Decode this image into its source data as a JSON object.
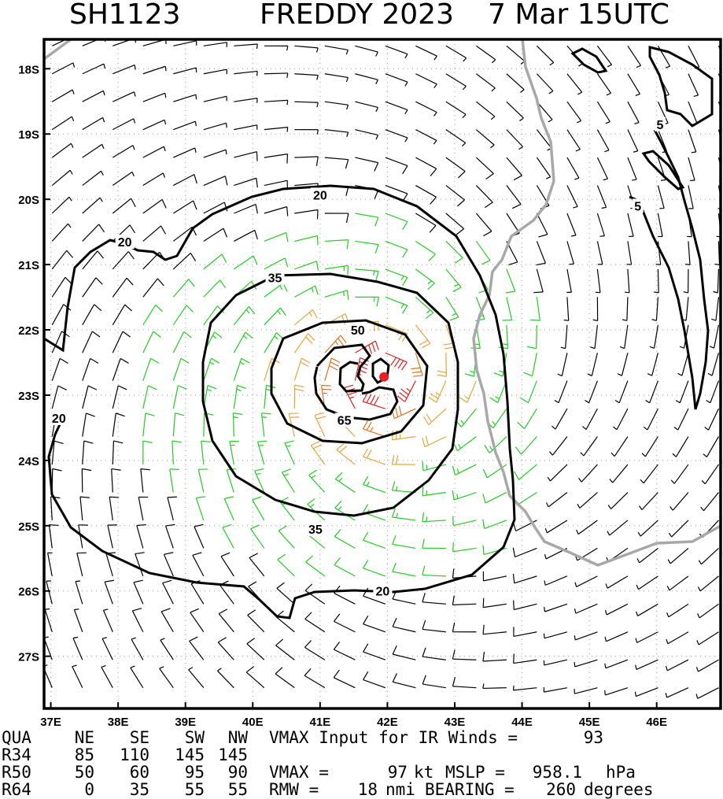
{
  "title": {
    "storm_id": "SH1123",
    "storm_name_year": "FREDDY 2023",
    "datetime": "7 Mar 15UTC"
  },
  "chart_data": {
    "type": "wind-barb-map",
    "lon_range": [
      36.9,
      46.95
    ],
    "lat_range": [
      -27.8,
      -17.55
    ],
    "x_tick_labels": [
      "37E",
      "38E",
      "39E",
      "40E",
      "41E",
      "42E",
      "43E",
      "44E",
      "45E",
      "46E"
    ],
    "x_tick_values": [
      37,
      38,
      39,
      40,
      41,
      42,
      43,
      44,
      45,
      46
    ],
    "y_tick_labels": [
      "18S",
      "19S",
      "20S",
      "21S",
      "22S",
      "23S",
      "24S",
      "25S",
      "26S",
      "27S"
    ],
    "y_tick_values": [
      -18,
      -19,
      -20,
      -21,
      -22,
      -23,
      -24,
      -25,
      -26,
      -27
    ],
    "storm_center": {
      "lon": 41.95,
      "lat": -22.72
    },
    "contour_levels_kt": [
      5,
      20,
      35,
      50,
      65
    ],
    "contour_labels": [
      {
        "text": "20",
        "lon": 41.0,
        "lat": -19.93
      },
      {
        "text": "20",
        "lon": 38.1,
        "lat": -20.65
      },
      {
        "text": "20",
        "lon": 37.12,
        "lat": -23.35
      },
      {
        "text": "20",
        "lon": 41.93,
        "lat": -26.0
      },
      {
        "text": "35",
        "lon": 40.33,
        "lat": -21.2
      },
      {
        "text": "35",
        "lon": 40.93,
        "lat": -25.05
      },
      {
        "text": "50",
        "lon": 41.56,
        "lat": -22.0
      },
      {
        "text": "65",
        "lon": 41.36,
        "lat": -23.38
      },
      {
        "text": "5",
        "lon": 46.05,
        "lat": -18.85
      },
      {
        "text": "5",
        "lon": 45.72,
        "lat": -20.1
      }
    ],
    "wind_colors": {
      "calm": "#000000",
      "ts": "#22cc22",
      "strong": "#e8a33a",
      "hurricane": "#e07020",
      "core": "#e02020"
    },
    "barb_spacing_deg": 0.45
  },
  "stats": {
    "header": [
      "QUA",
      "NE",
      "SE",
      "SW",
      "NW"
    ],
    "rows": [
      {
        "label": "R34",
        "values": [
          "85",
          "110",
          "145",
          "145"
        ]
      },
      {
        "label": "R50",
        "values": [
          "50",
          "60",
          "95",
          "90"
        ]
      },
      {
        "label": "R64",
        "values": [
          "0",
          "35",
          "55",
          "55"
        ]
      }
    ],
    "vmax_input_text": "VMAX Input for IR Winds =",
    "vmax_input_value": "93",
    "vmax_text": "VMAX =",
    "vmax_value": "97",
    "vmax_unit": "kt",
    "mslp_text": "MSLP =",
    "mslp_value": "958.1",
    "mslp_unit": "hPa",
    "rmw_text": "RMW =",
    "rmw_value": "18",
    "rmw_unit": "nmi",
    "bearing_text": "BEARING =",
    "bearing_value": "260",
    "bearing_unit": "degrees"
  },
  "colors": {
    "border": "#000000",
    "coastline": "#a8a8a8",
    "grid": "#9a9a9a"
  }
}
